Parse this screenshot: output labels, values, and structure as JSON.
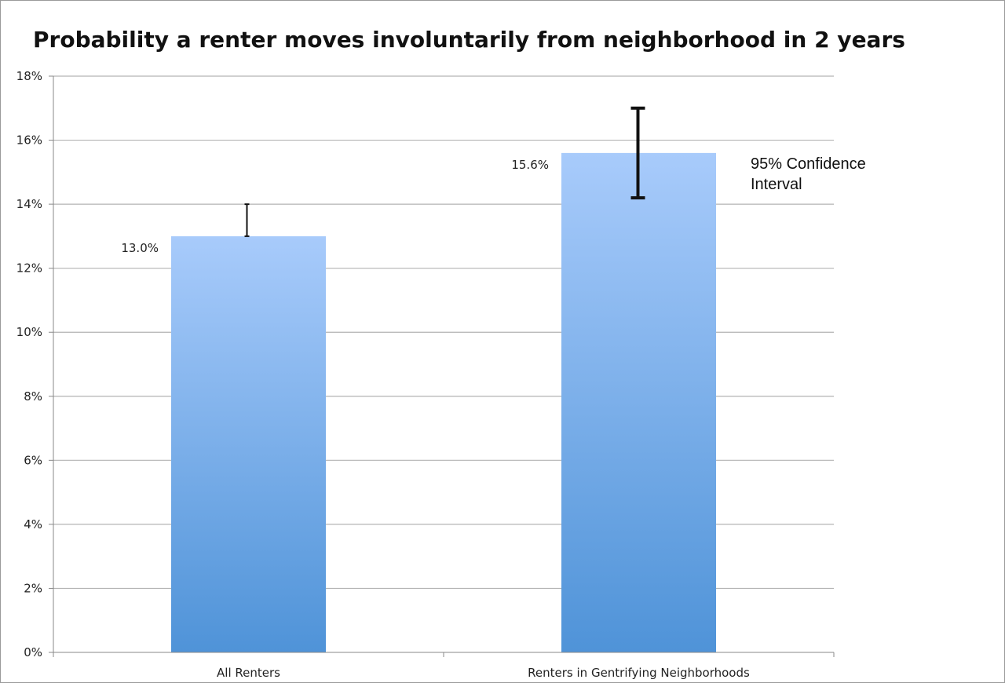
{
  "chart_data": {
    "type": "bar",
    "title": "Probability a renter moves involuntarily from neighborhood in 2 years",
    "xlabel": "",
    "ylabel": "",
    "categories": [
      "All Renters",
      "Renters in Gentrifying Neighborhoods"
    ],
    "values": [
      13.0,
      15.6
    ],
    "data_labels": [
      "13.0%",
      "15.6%"
    ],
    "error_bars": [
      {
        "low": 13.0,
        "high": 14.0
      },
      {
        "low": 14.2,
        "high": 17.0
      }
    ],
    "ylim": [
      0,
      18
    ],
    "yticks": [
      0,
      2,
      4,
      6,
      8,
      10,
      12,
      14,
      16,
      18
    ],
    "ytick_labels": [
      "0%",
      "2%",
      "4%",
      "6%",
      "8%",
      "10%",
      "12%",
      "14%",
      "16%",
      "18%"
    ],
    "grid": true,
    "annotation": "95% Confidence Interval",
    "colors": {
      "bar_top": "#a8cbfb",
      "bar_bottom": "#4f93d8",
      "grid": "#b3b3b3",
      "error_bar": "#111111"
    }
  }
}
